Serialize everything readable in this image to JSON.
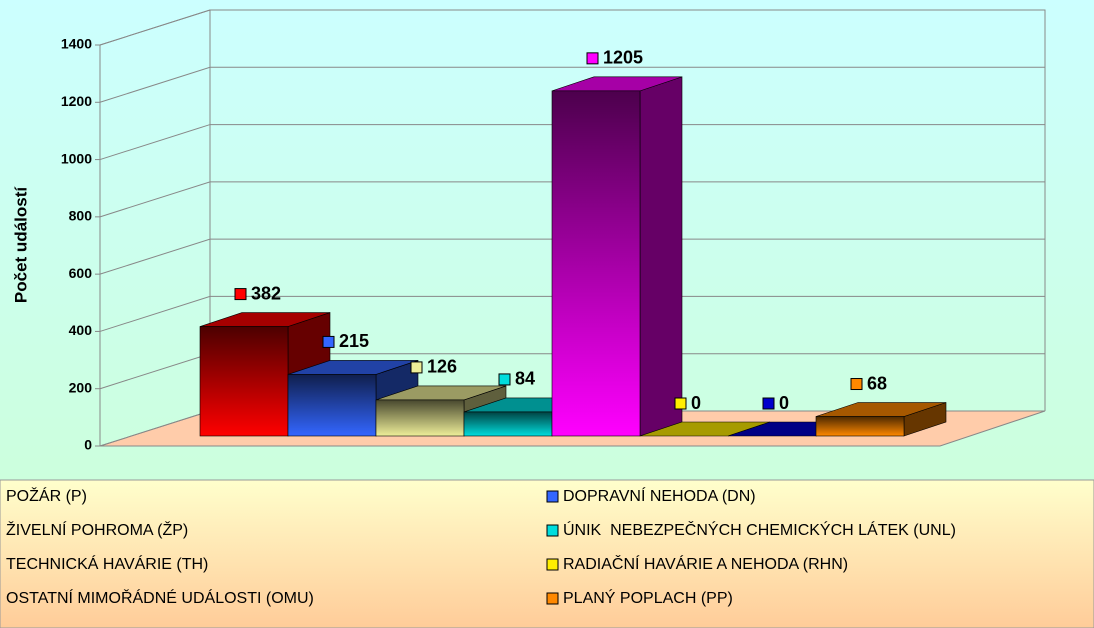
{
  "chart_data": {
    "type": "bar3d",
    "y_axis_label": "Počet událostí",
    "categories": [
      "POŽÁR (P)",
      "DOPRAVNÍ NEHODA (DN)",
      "ŽIVELNÍ POHROMA (ŽP)",
      "ÚNIK  NEBEZPEČNÝCH CHEMICKÝCH LÁTEK (UNL)",
      "TECHNICKÁ HAVÁRIE (TH)",
      "RADIAČNÍ HAVÁRIE A NEHODA (RHN)",
      "OSTATNÍ MIMOŘÁDNÉ UDÁLOSTI (OMU)",
      "PLANÝ POPLACH (PP)"
    ],
    "values": [
      382,
      215,
      126,
      84,
      1205,
      0,
      0,
      68
    ],
    "colors": [
      "#ff0000",
      "#3366ff",
      "#eeee99",
      "#00dddd",
      "#ff00ff",
      "#ffee00",
      "#0000cc",
      "#ff8800"
    ],
    "ylim": [
      0,
      1400
    ],
    "yticks": [
      0,
      200,
      400,
      600,
      800,
      1000,
      1200,
      1400
    ],
    "grid": true
  }
}
